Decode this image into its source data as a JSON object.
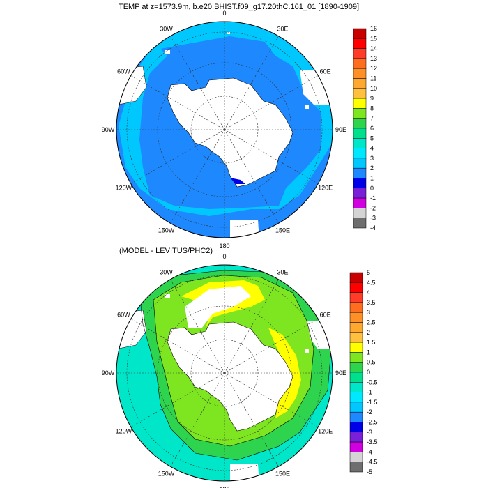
{
  "panels": [
    {
      "title": "TEMP at z=1573.9m, b.e20.BHIST.f09_g17.20thC.161_01 [1890-1909]",
      "colorbar": {
        "labels": [
          "16",
          "15",
          "14",
          "13",
          "12",
          "11",
          "10",
          "9",
          "8",
          "7",
          "6",
          "5",
          "4",
          "3",
          "2",
          "1",
          "0",
          "-1",
          "-2",
          "-3",
          "-4"
        ],
        "colors": [
          "#c80000",
          "#ff0000",
          "#ff3c28",
          "#ff6e1e",
          "#ff9028",
          "#ffa830",
          "#ffc040",
          "#ffff00",
          "#7ee620",
          "#2ed34e",
          "#00e08c",
          "#00e6c8",
          "#00e8ff",
          "#00c8ff",
          "#1e88ff",
          "#0000e6",
          "#7a20d8",
          "#d000e0",
          "#d4d4d4",
          "#6e6e6e"
        ]
      },
      "data_values": {
        "ocean_north": 1.8,
        "ocean_south": 2.5,
        "coastal_min": 0.5
      }
    },
    {
      "title": "(MODEL - LEVITUS/PHC2)",
      "colorbar": {
        "labels": [
          "5",
          "4.5",
          "4",
          "3.5",
          "3",
          "2.5",
          "2",
          "1.5",
          "1",
          "0.5",
          "0",
          "-0.5",
          "-1",
          "-1.5",
          "-2",
          "-2.5",
          "-3",
          "-3.5",
          "-4",
          "-4.5",
          "-5"
        ],
        "colors": [
          "#c80000",
          "#ff0000",
          "#ff3c28",
          "#ff6e1e",
          "#ff9028",
          "#ffa830",
          "#ffc040",
          "#ffff00",
          "#7ee620",
          "#2ed34e",
          "#00e08c",
          "#00e6c8",
          "#00e8ff",
          "#00c8ff",
          "#1e88ff",
          "#0000e6",
          "#7a20d8",
          "#d000e0",
          "#d4d4d4",
          "#6e6e6e"
        ]
      },
      "data_values": {
        "near_coast": 1.2,
        "middle_band": 0.7,
        "outer": -0.3
      }
    }
  ],
  "longitude_labels": [
    "0",
    "30E",
    "60E",
    "90E",
    "120E",
    "150E",
    "180",
    "150W",
    "120W",
    "90W",
    "60W",
    "30W"
  ]
}
